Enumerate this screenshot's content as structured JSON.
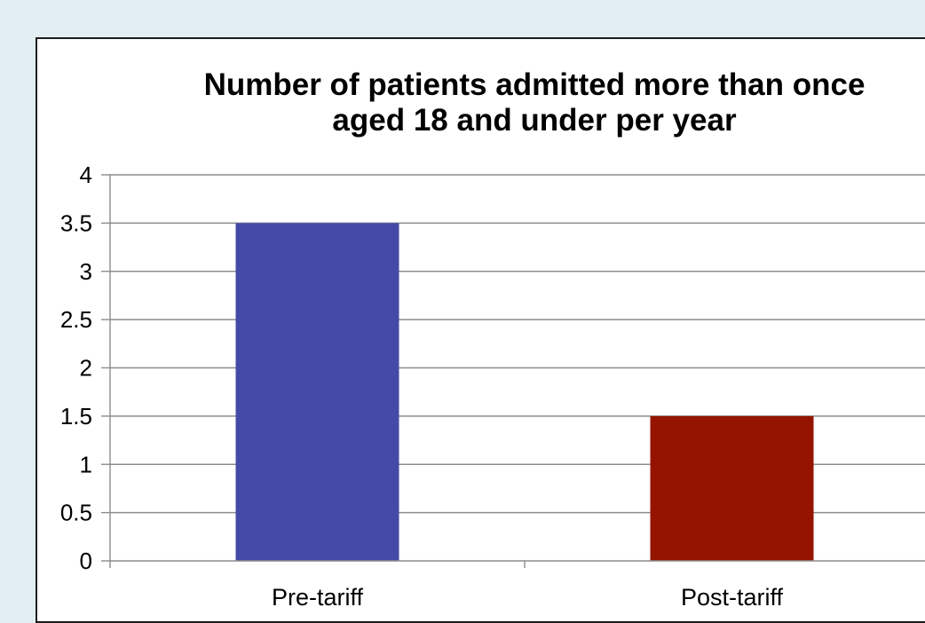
{
  "chart_data": {
    "type": "bar",
    "title_lines": [
      "Number of patients admitted more than once",
      "aged 18 and under per year"
    ],
    "categories": [
      "Pre-tariff",
      "Post-tariff"
    ],
    "values": [
      3.5,
      1.5
    ],
    "colors": [
      "#444aa8",
      "#941400"
    ],
    "yticks": [
      "0",
      "0.5",
      "1",
      "1.5",
      "2",
      "2.5",
      "3",
      "3.5",
      "4"
    ],
    "ylim": [
      0,
      4
    ],
    "grid": true,
    "legend": "none"
  }
}
